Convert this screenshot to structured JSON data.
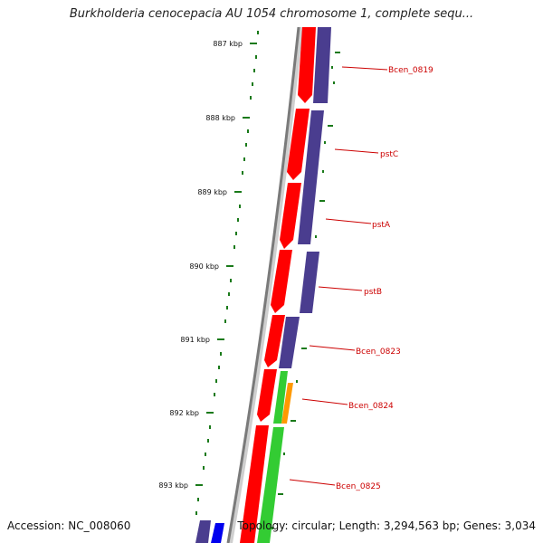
{
  "title": "Burkholderia cenocepacia AU 1054 chromosome 1, complete sequ...",
  "footer": {
    "accession": "Accession: NC_008060",
    "info": "Topology: circular; Length: 3,294,563 bp; Genes: 3,034"
  },
  "colors": {
    "backbone": "#888888",
    "tick": "#1a7a1a",
    "label_line": "#cc0000",
    "gene_label": "#cc0000",
    "forward_cds": "#ff0000",
    "reverse_cds": "#4a3d8f",
    "green_feature": "#33cc33",
    "orange_feature": "#ff9900",
    "blue_feature": "#0000ee"
  },
  "scale_labels": [
    "887 kbp",
    "888 kbp",
    "889 kbp",
    "890 kbp",
    "891 kbp",
    "892 kbp",
    "893 kbp"
  ],
  "gene_labels": [
    "Bcen_0819",
    "pstC",
    "pstA",
    "pstB",
    "Bcen_0823",
    "Bcen_0824",
    "Bcen_0825"
  ]
}
